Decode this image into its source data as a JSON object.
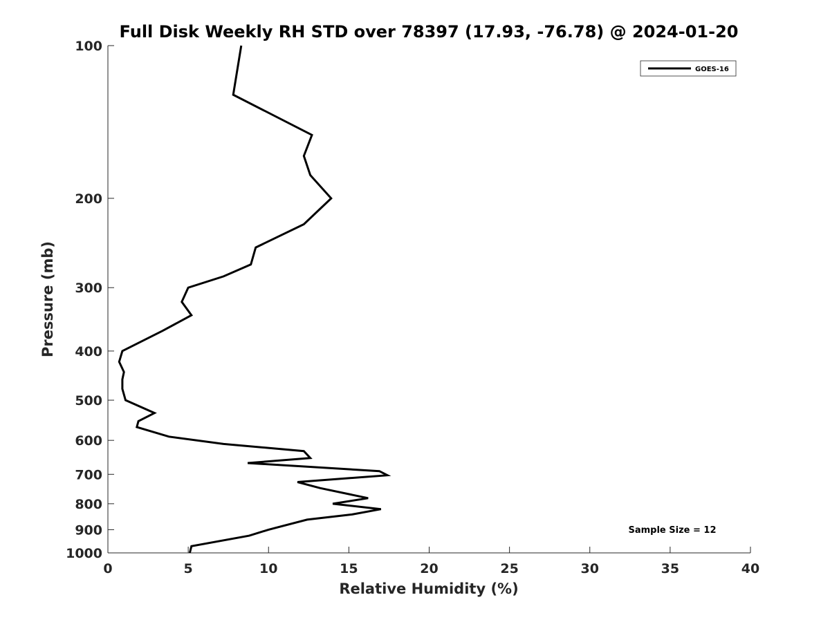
{
  "chart_data": {
    "type": "line",
    "title": "Full Disk Weekly RH STD over 78397 (17.93, -76.78) @ 2024-01-20",
    "xlabel": "Relative Humidity (%)",
    "ylabel": "Pressure (mb)",
    "xlim": [
      0,
      40
    ],
    "ylim": [
      100,
      1000
    ],
    "yscale": "log",
    "yaxis_inverted": true,
    "grid": false,
    "x_ticks": [
      0,
      5,
      10,
      15,
      20,
      25,
      30,
      35,
      40
    ],
    "x_tick_labels": [
      "0",
      "5",
      "10",
      "15",
      "20",
      "25",
      "30",
      "35",
      "40"
    ],
    "y_ticks": [
      100,
      200,
      300,
      400,
      500,
      600,
      700,
      800,
      900,
      1000
    ],
    "y_tick_labels": [
      "100",
      "200",
      "300",
      "400",
      "500",
      "600",
      "700",
      "800",
      "900",
      "1000"
    ],
    "legend": {
      "position": "top-right",
      "entries": [
        "GOES-16"
      ]
    },
    "annotation": "Sample Size = 12",
    "series": [
      {
        "name": "GOES-16",
        "color": "#000000",
        "points": [
          [
            8.3,
            100
          ],
          [
            7.8,
            125
          ],
          [
            12.7,
            150
          ],
          [
            12.2,
            165
          ],
          [
            12.6,
            180
          ],
          [
            13.9,
            200
          ],
          [
            12.2,
            225
          ],
          [
            9.2,
            250
          ],
          [
            8.9,
            270
          ],
          [
            7.2,
            285
          ],
          [
            5.0,
            300
          ],
          [
            4.6,
            320
          ],
          [
            5.2,
            340
          ],
          [
            3.4,
            365
          ],
          [
            0.9,
            400
          ],
          [
            0.7,
            420
          ],
          [
            1.0,
            440
          ],
          [
            0.9,
            455
          ],
          [
            0.9,
            475
          ],
          [
            1.1,
            500
          ],
          [
            2.9,
            530
          ],
          [
            1.9,
            550
          ],
          [
            1.8,
            565
          ],
          [
            3.8,
            590
          ],
          [
            7.2,
            610
          ],
          [
            12.2,
            630
          ],
          [
            12.6,
            650
          ],
          [
            8.7,
            665
          ],
          [
            16.9,
            690
          ],
          [
            17.4,
            703
          ],
          [
            11.8,
            725
          ],
          [
            13.2,
            745
          ],
          [
            16.2,
            780
          ],
          [
            14.0,
            800
          ],
          [
            17.0,
            820
          ],
          [
            15.2,
            840
          ],
          [
            12.4,
            860
          ],
          [
            10.0,
            900
          ],
          [
            8.8,
            925
          ],
          [
            5.2,
            970
          ],
          [
            5.1,
            1000
          ]
        ]
      }
    ]
  }
}
